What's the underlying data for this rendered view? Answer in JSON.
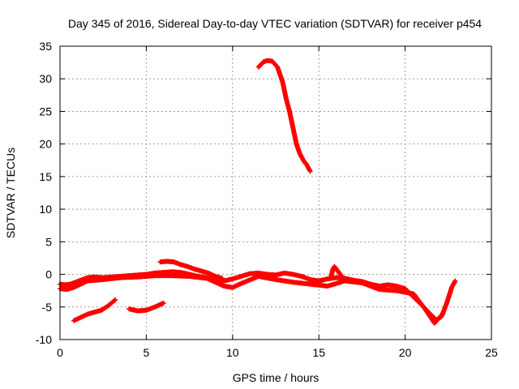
{
  "chart_data": {
    "type": "scatter",
    "title": "Day 345 of 2016, Sidereal Day-to-day VTEC variation (SDTVAR) for receiver p454",
    "xlabel": "GPS time / hours",
    "ylabel": "SDTVAR / TECUs",
    "xlim": [
      0,
      25
    ],
    "ylim": [
      -10,
      35
    ],
    "xticks": [
      0,
      5,
      10,
      15,
      20,
      25
    ],
    "yticks": [
      -10,
      -5,
      0,
      5,
      10,
      15,
      20,
      25,
      30,
      35
    ],
    "grid": true,
    "legend": "none",
    "marker": "plus",
    "color": "#ff0000",
    "series": [
      {
        "name": "arc-main-baseline",
        "x": [
          0,
          0.3,
          0.6,
          0.9,
          1.2,
          1.6,
          2.0,
          2.5,
          3.0,
          3.5,
          4.0,
          4.5,
          5.0,
          5.5,
          6.0,
          6.5,
          7.0,
          7.5,
          8.0,
          8.5,
          9.0,
          9.5,
          10.0,
          10.5,
          11.0,
          11.5,
          12.0,
          12.5,
          13.0,
          13.5,
          14.0,
          14.5,
          15.0,
          15.5,
          16.0,
          16.5,
          17.0,
          17.5,
          18.0,
          18.5,
          19.0,
          19.5,
          20.0,
          20.5,
          21.0,
          21.5,
          21.8,
          22.1,
          22.4,
          22.7,
          22.9
        ],
        "y": [
          -1.5,
          -1.6,
          -1.5,
          -1.2,
          -0.9,
          -0.5,
          -0.4,
          -0.5,
          -0.4,
          -0.3,
          -0.2,
          -0.1,
          0.0,
          0.2,
          0.3,
          0.4,
          0.3,
          0.0,
          -0.3,
          -0.5,
          -0.8,
          -1.0,
          -0.7,
          -0.3,
          0.1,
          0.2,
          0.0,
          -0.1,
          0.2,
          0.0,
          -0.3,
          -0.8,
          -1.0,
          -0.7,
          -0.5,
          -0.6,
          -0.9,
          -1.1,
          -1.5,
          -1.8,
          -1.6,
          -1.8,
          -2.2,
          -3.5,
          -4.8,
          -6.2,
          -7.0,
          -6.5,
          -4.5,
          -2.0,
          -1.0
        ]
      },
      {
        "name": "arc-main-spread",
        "x": [
          0,
          0.4,
          0.8,
          1.2,
          1.6,
          2.5,
          3.5,
          4.5,
          5.5,
          6.5,
          7.5,
          8.5,
          9.5,
          10.0,
          10.5,
          11.5,
          12.5,
          13.5,
          14.5,
          15.5,
          16.5,
          17.5,
          18.5,
          19.5,
          20.5,
          21.2,
          21.7,
          22.2
        ],
        "y": [
          -2.2,
          -2.3,
          -2.0,
          -1.5,
          -1.0,
          -0.8,
          -0.5,
          -0.4,
          -0.2,
          -0.2,
          -0.3,
          -0.6,
          -1.8,
          -2.0,
          -1.4,
          -0.3,
          -0.8,
          -1.2,
          -1.5,
          -1.8,
          -1.0,
          -1.3,
          -2.3,
          -2.5,
          -3.0,
          -5.5,
          -7.5,
          -6.0
        ]
      },
      {
        "name": "arc-high-dip",
        "x": [
          11.5,
          11.8,
          12.0,
          12.3,
          12.6,
          12.9,
          13.1,
          13.3,
          13.5,
          13.7,
          13.9,
          14.1,
          14.3,
          14.5
        ],
        "y": [
          31.8,
          32.6,
          32.8,
          32.7,
          31.8,
          29.5,
          27.0,
          25.0,
          22.5,
          20.0,
          18.5,
          17.5,
          16.8,
          15.8
        ]
      },
      {
        "name": "arc-low-1",
        "x": [
          0.8,
          1.2,
          1.6,
          2.0,
          2.4,
          2.8,
          3.2
        ],
        "y": [
          -7.1,
          -6.6,
          -6.1,
          -5.8,
          -5.5,
          -4.8,
          -3.9
        ]
      },
      {
        "name": "arc-low-2",
        "x": [
          4.0,
          4.5,
          5.0,
          5.5,
          6.0
        ],
        "y": [
          -5.3,
          -5.6,
          -5.5,
          -5.0,
          -4.4
        ]
      },
      {
        "name": "arc-offset",
        "x": [
          5.8,
          6.2,
          6.6,
          7.0,
          7.4,
          7.8,
          8.2,
          8.6,
          9.0,
          9.4
        ],
        "y": [
          1.9,
          2.0,
          1.9,
          1.5,
          1.2,
          0.8,
          0.5,
          0.2,
          -0.3,
          -0.6
        ]
      },
      {
        "name": "arc-spike",
        "x": [
          15.7,
          15.8,
          15.9,
          16.1,
          16.3
        ],
        "y": [
          -0.5,
          0.7,
          1.2,
          0.5,
          -0.2
        ]
      }
    ]
  }
}
